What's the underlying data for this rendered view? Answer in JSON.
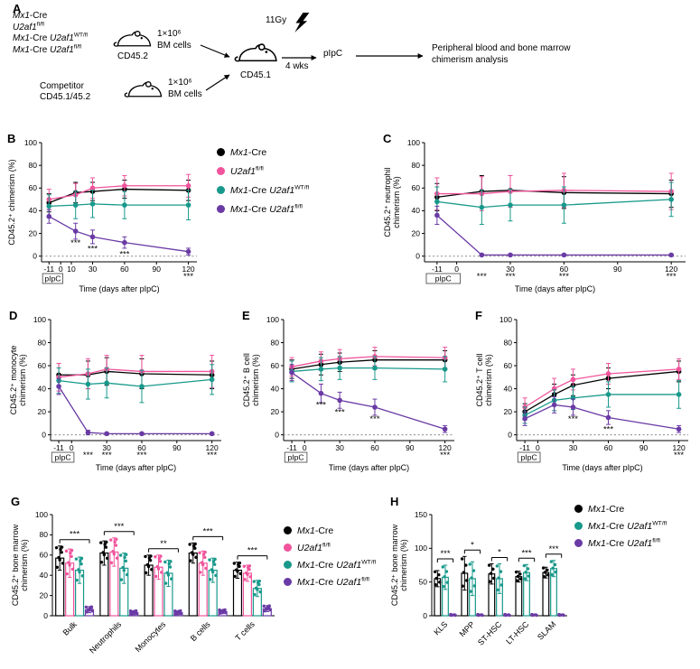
{
  "panelA": {
    "label": "A",
    "genotypes": [
      "*Mx1*-Cre",
      "*U2af1*^{fl/fl}",
      "*Mx1*-Cre *U2af1*^{WT/fl}",
      "*Mx1*-Cre *U2af1*^{fl/fl}"
    ],
    "donor_label": "CD45.2",
    "competitor_line1": "Competitor",
    "competitor_line2": "CD45.1/45.2",
    "bm_amount": "1×10⁶",
    "bm_cells": "BM cells",
    "irradiation": "11Gy",
    "recipient_label": "CD45.1",
    "wait_label": "4 wks",
    "pipc_label": "pIpC",
    "outcome": "Peripheral blood and bone marrow chimerism analysis"
  },
  "colors": {
    "mx1_cre": "#000000",
    "u2af1_flfl": "#F0549C",
    "mx1_cre_u2af1_wtfl": "#18998B",
    "mx1_cre_u2af1_flfl": "#6A3AA5"
  },
  "chart_data": [
    {
      "type": "line",
      "panel_label": "B",
      "ylabel": [
        "CD45.2⁺ chimerism (%)"
      ],
      "xlabel": "Time (days after pIpC)",
      "ylim": [
        0,
        100
      ],
      "yticks": [
        0,
        20,
        40,
        60,
        80,
        100
      ],
      "xticks": [
        -11,
        0,
        10,
        30,
        60,
        90,
        120
      ],
      "x": [
        -11,
        14,
        30,
        60,
        120
      ],
      "pipc_label": "pIpC",
      "series": [
        {
          "name": "*Mx1*-Cre",
          "color": "#000000",
          "values": [
            47,
            56,
            57,
            59,
            58
          ],
          "err": [
            8,
            9,
            8,
            8,
            9
          ]
        },
        {
          "name": "*U2af1*^{fl/fl}",
          "color": "#F0549C",
          "values": [
            50,
            54,
            60,
            62,
            62
          ],
          "err": [
            9,
            10,
            9,
            9,
            10
          ]
        },
        {
          "name": "*Mx1*-Cre *U2af1*^{WT/fl}",
          "color": "#18998B",
          "values": [
            44,
            45,
            46,
            45,
            45
          ],
          "err": [
            10,
            12,
            12,
            12,
            13
          ]
        },
        {
          "name": "*Mx1*-Cre *U2af1*^{fl/fl}",
          "color": "#6A3AA5",
          "values": [
            35,
            22,
            17,
            12,
            4
          ],
          "err": [
            6,
            7,
            6,
            5,
            3
          ]
        }
      ],
      "sig": [
        {
          "x": 14,
          "label": "***"
        },
        {
          "x": 30,
          "label": "***"
        },
        {
          "x": 60,
          "label": "***"
        },
        {
          "x": 120,
          "label": "***"
        }
      ]
    },
    {
      "type": "line",
      "panel_label": "C",
      "ylabel": [
        "CD45.2⁺ neutrophil",
        "chimerism (%)"
      ],
      "xlabel": "Time (days after pIpC)",
      "ylim": [
        0,
        100
      ],
      "yticks": [
        0,
        20,
        40,
        60,
        80,
        100
      ],
      "xticks": [
        -11,
        0,
        30,
        60,
        90,
        120
      ],
      "x": [
        -11,
        14,
        30,
        60,
        120
      ],
      "pipc_label": "pIpC",
      "series": [
        {
          "name": "*Mx1*-Cre",
          "color": "#000000",
          "values": [
            52,
            57,
            58,
            56,
            55
          ],
          "err": [
            12,
            14,
            13,
            14,
            12
          ]
        },
        {
          "name": "*U2af1*^{fl/fl}",
          "color": "#F0549C",
          "values": [
            55,
            55,
            57,
            58,
            57
          ],
          "err": [
            14,
            15,
            14,
            15,
            16
          ]
        },
        {
          "name": "*Mx1*-Cre *U2af1*^{WT/fl}",
          "color": "#18998B",
          "values": [
            48,
            43,
            45,
            45,
            50
          ],
          "err": [
            13,
            15,
            14,
            16,
            15
          ]
        },
        {
          "name": "*Mx1*-Cre *U2af1*^{fl/fl}",
          "color": "#6A3AA5",
          "values": [
            36,
            1,
            1,
            1,
            1
          ],
          "err": [
            8,
            1,
            1,
            1,
            1
          ]
        }
      ],
      "sig": [
        {
          "x": 14,
          "label": "***"
        },
        {
          "x": 30,
          "label": "***"
        },
        {
          "x": 60,
          "label": "***"
        },
        {
          "x": 120,
          "label": "***"
        }
      ]
    },
    {
      "type": "line",
      "panel_label": "D",
      "ylabel": [
        "CD45.2⁺ monocyte",
        "chimerism (%)"
      ],
      "xlabel": "Time (days after pIpC)",
      "ylim": [
        0,
        100
      ],
      "yticks": [
        0,
        20,
        40,
        60,
        80,
        100
      ],
      "xticks": [
        -11,
        0,
        30,
        60,
        90,
        120
      ],
      "x": [
        -11,
        14,
        30,
        60,
        120
      ],
      "pipc_label": "pIpC",
      "series": [
        {
          "name": "*Mx1*-Cre",
          "color": "#000000",
          "values": [
            52,
            52,
            55,
            53,
            52
          ],
          "err": [
            10,
            12,
            12,
            13,
            12
          ]
        },
        {
          "name": "*U2af1*^{fl/fl}",
          "color": "#F0549C",
          "values": [
            50,
            53,
            57,
            55,
            55
          ],
          "err": [
            12,
            13,
            12,
            14,
            14
          ]
        },
        {
          "name": "*Mx1*-Cre *U2af1*^{WT/fl}",
          "color": "#18998B",
          "values": [
            47,
            44,
            45,
            42,
            48
          ],
          "err": [
            11,
            13,
            13,
            14,
            13
          ]
        },
        {
          "name": "*Mx1*-Cre *U2af1*^{fl/fl}",
          "color": "#6A3AA5",
          "values": [
            42,
            2,
            1,
            1,
            1
          ],
          "err": [
            7,
            2,
            1,
            1,
            1
          ]
        }
      ],
      "sig": [
        {
          "x": 14,
          "label": "***"
        },
        {
          "x": 30,
          "label": "***"
        },
        {
          "x": 60,
          "label": "***"
        },
        {
          "x": 120,
          "label": "***"
        }
      ]
    },
    {
      "type": "line",
      "panel_label": "E",
      "ylabel": [
        "CD45.2⁺ B cell",
        "chimerism (%)"
      ],
      "xlabel": "Time (days after pIpC)",
      "ylim": [
        0,
        100
      ],
      "yticks": [
        0,
        20,
        40,
        60,
        80,
        100
      ],
      "xticks": [
        -11,
        0,
        30,
        60,
        90,
        120
      ],
      "x": [
        -11,
        14,
        30,
        60,
        120
      ],
      "pipc_label": "pIpC",
      "series": [
        {
          "name": "*Mx1*-Cre",
          "color": "#000000",
          "values": [
            57,
            61,
            63,
            65,
            65
          ],
          "err": [
            8,
            9,
            8,
            8,
            8
          ]
        },
        {
          "name": "*U2af1*^{fl/fl}",
          "color": "#F0549C",
          "values": [
            59,
            64,
            66,
            68,
            67
          ],
          "err": [
            8,
            8,
            8,
            8,
            9
          ]
        },
        {
          "name": "*Mx1*-Cre *U2af1*^{WT/fl}",
          "color": "#18998B",
          "values": [
            55,
            57,
            58,
            58,
            57
          ],
          "err": [
            9,
            10,
            10,
            10,
            11
          ]
        },
        {
          "name": "*Mx1*-Cre *U2af1*^{fl/fl}",
          "color": "#6A3AA5",
          "values": [
            54,
            36,
            30,
            24,
            5
          ],
          "err": [
            7,
            8,
            7,
            7,
            3
          ]
        }
      ],
      "sig": [
        {
          "x": 14,
          "label": "***"
        },
        {
          "x": 30,
          "label": "***"
        },
        {
          "x": 60,
          "label": "***"
        },
        {
          "x": 120,
          "label": "***"
        }
      ]
    },
    {
      "type": "line",
      "panel_label": "F",
      "ylabel": [
        "CD45.2⁺ T cell",
        "chimerism (%)"
      ],
      "xlabel": "Time (days after pIpC)",
      "ylim": [
        0,
        100
      ],
      "yticks": [
        0,
        20,
        40,
        60,
        80,
        100
      ],
      "xticks": [
        -11,
        0,
        30,
        60,
        90,
        120
      ],
      "x": [
        -11,
        14,
        30,
        60,
        120
      ],
      "pipc_label": "pIpC",
      "series": [
        {
          "name": "*Mx1*-Cre",
          "color": "#000000",
          "values": [
            20,
            35,
            43,
            49,
            55
          ],
          "err": [
            7,
            9,
            9,
            9,
            9
          ]
        },
        {
          "name": "*U2af1*^{fl/fl}",
          "color": "#F0549C",
          "values": [
            24,
            40,
            48,
            53,
            57
          ],
          "err": [
            8,
            9,
            9,
            9,
            9
          ]
        },
        {
          "name": "*Mx1*-Cre *U2af1*^{WT/fl}",
          "color": "#18998B",
          "values": [
            17,
            30,
            32,
            35,
            35
          ],
          "err": [
            7,
            9,
            10,
            11,
            12
          ]
        },
        {
          "name": "*Mx1*-Cre *U2af1*^{fl/fl}",
          "color": "#6A3AA5",
          "values": [
            14,
            26,
            24,
            15,
            5
          ],
          "err": [
            6,
            7,
            7,
            6,
            3
          ]
        }
      ],
      "sig": [
        {
          "x": 30,
          "label": "***"
        },
        {
          "x": 60,
          "label": "***"
        },
        {
          "x": 120,
          "label": "***"
        }
      ]
    },
    {
      "type": "bar",
      "panel_label": "G",
      "ylabel": [
        "CD45.2⁺ bone marrow",
        "chimerism (%)"
      ],
      "ylim": [
        0,
        100
      ],
      "yticks": [
        0,
        20,
        40,
        60,
        80,
        100
      ],
      "categories": [
        "Bulk",
        "Neutrophils",
        "Monocytes",
        "B cells",
        "T cells"
      ],
      "n_dots": 8,
      "series": [
        {
          "name": "*Mx1*-Cre",
          "color": "#000000",
          "values": [
            57,
            62,
            50,
            62,
            45
          ],
          "err": [
            12,
            12,
            10,
            10,
            8
          ]
        },
        {
          "name": "*U2af1*^{fl/fl}",
          "color": "#F0549C",
          "values": [
            52,
            63,
            48,
            52,
            42
          ],
          "err": [
            14,
            14,
            12,
            12,
            8
          ]
        },
        {
          "name": "*Mx1*-Cre *U2af1*^{WT/fl}",
          "color": "#18998B",
          "values": [
            45,
            47,
            42,
            45,
            27
          ],
          "err": [
            13,
            15,
            13,
            12,
            8
          ]
        },
        {
          "name": "*Mx1*-Cre *U2af1*^{fl/fl}",
          "color": "#6A3AA5",
          "values": [
            6,
            3,
            3,
            4,
            7
          ],
          "err": [
            3,
            2,
            2,
            2,
            3
          ]
        }
      ],
      "sig": [
        {
          "category": "Bulk",
          "label": "***"
        },
        {
          "category": "Neutrophils",
          "label": "***"
        },
        {
          "category": "Monocytes",
          "label": "**"
        },
        {
          "category": "B cells",
          "label": "***"
        },
        {
          "category": "T cells",
          "label": "***"
        }
      ]
    },
    {
      "type": "bar",
      "panel_label": "H",
      "ylabel": [
        "CD45.2⁺ bone marrow",
        "chimerism (%)"
      ],
      "ylim": [
        0,
        150
      ],
      "yticks": [
        0,
        50,
        100,
        150
      ],
      "categories": [
        "KLS",
        "MPP",
        "ST-HSC",
        "LT-HSC",
        "SLAM"
      ],
      "n_dots": 5,
      "series": [
        {
          "name": "*Mx1*-Cre",
          "color": "#000000",
          "values": [
            55,
            63,
            62,
            58,
            64
          ],
          "err": [
            12,
            25,
            15,
            8,
            8
          ]
        },
        {
          "name": "*Mx1*-Cre *U2af1*^{WT/fl}",
          "color": "#18998B",
          "values": [
            57,
            55,
            55,
            64,
            70
          ],
          "err": [
            18,
            25,
            22,
            12,
            12
          ]
        },
        {
          "name": "*Mx1*-Cre *U2af1*^{fl/fl}",
          "color": "#6A3AA5",
          "values": [
            1,
            1,
            1,
            1,
            1
          ],
          "err": [
            1,
            1,
            1,
            1,
            1
          ]
        }
      ],
      "sig": [
        {
          "category": "KLS",
          "label": "***"
        },
        {
          "category": "MPP",
          "label": "*"
        },
        {
          "category": "ST-HSC",
          "label": "*"
        },
        {
          "category": "LT-HSC",
          "label": "***"
        },
        {
          "category": "SLAM",
          "label": "***"
        }
      ]
    }
  ]
}
